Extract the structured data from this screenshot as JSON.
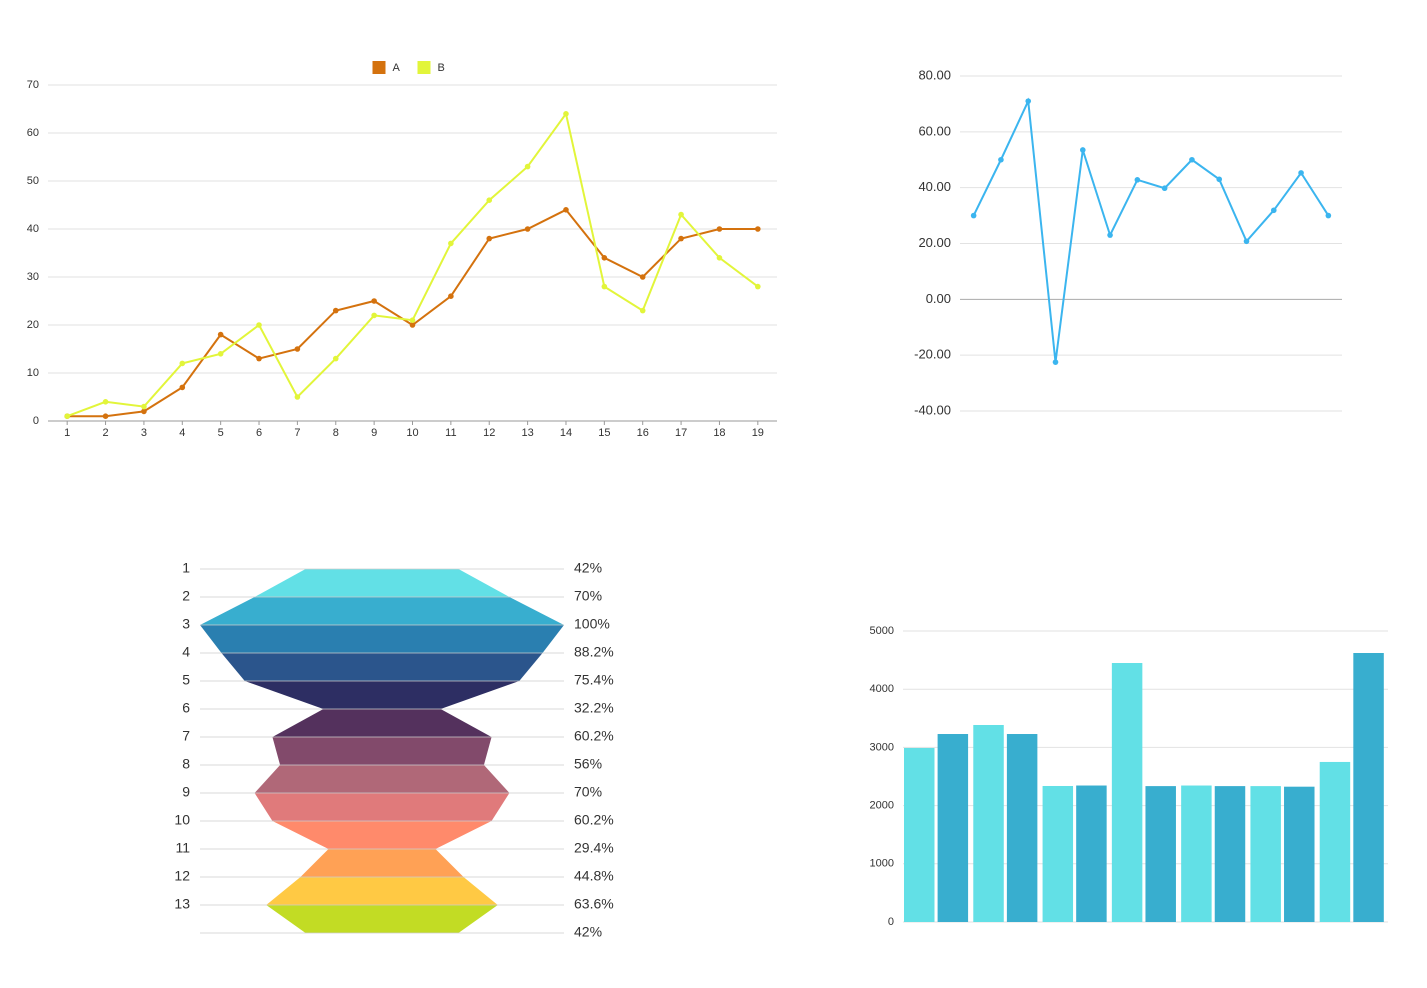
{
  "chart_data": [
    {
      "type": "line",
      "categories": [
        "1",
        "2",
        "3",
        "4",
        "5",
        "6",
        "7",
        "8",
        "9",
        "10",
        "11",
        "12",
        "13",
        "14",
        "15",
        "16",
        "17",
        "18",
        "19"
      ],
      "series": [
        {
          "name": "A",
          "color": "#d4720e",
          "values": [
            1,
            1,
            2,
            7,
            18,
            13,
            15,
            23,
            25,
            20,
            26,
            38,
            40,
            44,
            34,
            30,
            38,
            40,
            40
          ]
        },
        {
          "name": "B",
          "color": "#e2f53a",
          "values": [
            1,
            4,
            3,
            12,
            14,
            20,
            5,
            13,
            22,
            21,
            37,
            46,
            53,
            64,
            28,
            23,
            43,
            34,
            28
          ]
        }
      ],
      "ylim": [
        0,
        70
      ],
      "yticks": [
        0,
        10,
        20,
        30,
        40,
        50,
        60,
        70
      ],
      "grid": true,
      "legend": "top"
    },
    {
      "type": "line",
      "categories": [
        null,
        null,
        null,
        null,
        null,
        null,
        null,
        null,
        null,
        null,
        null,
        null,
        null,
        null
      ],
      "values": [
        30,
        50,
        71,
        -22.5,
        53.5,
        23,
        42.8,
        39.8,
        50,
        43,
        20.8,
        31.9,
        45.3,
        30
      ],
      "color": "#3bb5ef",
      "ylim": [
        -40,
        80
      ],
      "yticks": [
        {
          "value": -40,
          "label": "-40.00"
        },
        {
          "value": -20,
          "label": "-20.00"
        },
        {
          "value": 0,
          "label": "0.00"
        },
        {
          "value": 20,
          "label": "20.00"
        },
        {
          "value": 40,
          "label": "40.00"
        },
        {
          "value": 60,
          "label": "60.00"
        },
        {
          "value": 80,
          "label": "80.00"
        }
      ],
      "grid": true
    },
    {
      "type": "funnel",
      "categories": [
        "1",
        "2",
        "3",
        "4",
        "5",
        "6",
        "7",
        "8",
        "9",
        "10",
        "11",
        "12",
        "13",
        null
      ],
      "values": [
        42,
        70,
        100,
        88.2,
        75.4,
        32.2,
        60.2,
        56,
        70,
        60.2,
        29.4,
        44.8,
        63.6,
        42
      ],
      "value_labels": [
        "42%",
        "70%",
        "100%",
        "88.2%",
        "75.4%",
        "32.2%",
        "60.2%",
        "56%",
        "70%",
        "60.2%",
        "29.4%",
        "44.8%",
        "63.6%",
        "42%"
      ],
      "colors": [
        "#62e0e6",
        "#38aecf",
        "#2a7fb0",
        "#2b558c",
        "#2d2e63",
        "#54315d",
        "#824a6b",
        "#b06878",
        "#e07a7b",
        "#ff8a6b",
        "#ffa155",
        "#ffc944",
        "#c2dc24"
      ]
    },
    {
      "type": "bar",
      "categories": [
        null,
        null,
        null,
        null,
        null,
        null,
        null
      ],
      "series": [
        {
          "color": "#62e0e6",
          "values": [
            2990,
            3385,
            2337,
            4450,
            2345,
            2335,
            2750
          ]
        },
        {
          "color": "#38aecf",
          "values": [
            3230,
            3230,
            2345,
            2335,
            2335,
            2325,
            4622
          ]
        }
      ],
      "ylim": [
        0,
        5000
      ],
      "yticks": [
        0,
        1000,
        2000,
        3000,
        4000,
        5000
      ],
      "grid": true
    }
  ]
}
